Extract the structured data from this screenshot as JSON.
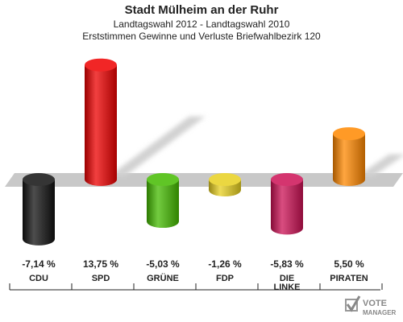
{
  "header": {
    "title": "Stadt Mülheim an der Ruhr",
    "subtitle": "Landtagswahl 2012 - Landtagswahl 2010",
    "subtitle2": "Erststimmen Gewinne und Verluste Briefwahlbezirk 120"
  },
  "chart_data": {
    "type": "bar",
    "title": "Stadt Mülheim an der Ruhr",
    "categories": [
      "CDU",
      "SPD",
      "GRÜNE",
      "FDP",
      "DIE LINKE",
      "PIRATEN"
    ],
    "values": [
      -7.14,
      13.75,
      -5.03,
      -1.26,
      -5.83,
      5.5
    ],
    "value_labels": [
      "-7,14 %",
      "13,75 %",
      "-5,03 %",
      "-1,26 %",
      "-5,83 %",
      "5,50 %"
    ],
    "colors": [
      "#111111",
      "#ee0000",
      "#44bb00",
      "#e8d020",
      "#cc1155",
      "#ff8800"
    ],
    "ylim": [
      -8,
      15
    ],
    "grid": false
  },
  "logo": {
    "line1": "VOTE",
    "line2": "MANAGER"
  }
}
